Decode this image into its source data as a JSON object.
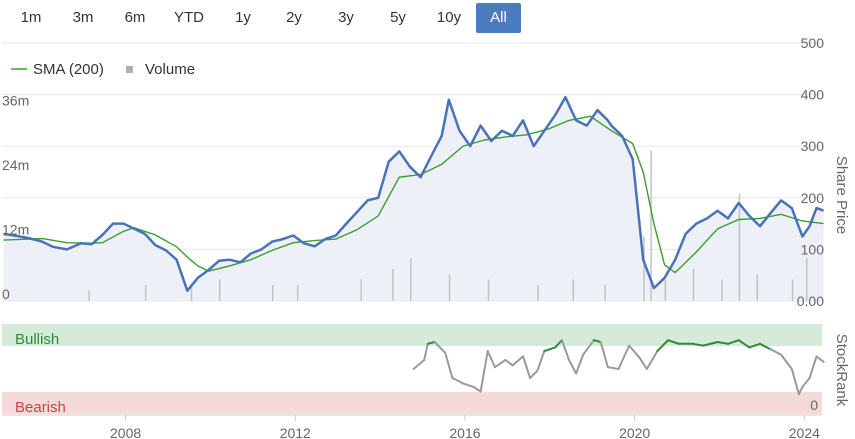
{
  "range_selector": {
    "buttons": [
      {
        "label": "1m",
        "active": false
      },
      {
        "label": "3m",
        "active": false
      },
      {
        "label": "6m",
        "active": false
      },
      {
        "label": "YTD",
        "active": false
      },
      {
        "label": "1y",
        "active": false
      },
      {
        "label": "2y",
        "active": false
      },
      {
        "label": "3y",
        "active": false
      },
      {
        "label": "5y",
        "active": false
      },
      {
        "label": "10y",
        "active": false
      },
      {
        "label": "All",
        "active": true
      }
    ]
  },
  "colors": {
    "price_line": "#4a72b8",
    "sma_line": "#3a9e2e",
    "volume_bar": "#c2c2c2",
    "area_fill": "#eef0f7",
    "bullish_band": "#d5ead8",
    "bullish_text": "#2e8b3a",
    "bearish_band": "#f6d9d9",
    "bearish_text": "#c74545",
    "stockrank_gray": "#9a9a9a",
    "stockrank_green": "#2e8b3a",
    "active_button": "#4a7bc0",
    "grid": "#e6e6e6"
  },
  "chart_data": {
    "type": "line",
    "x_axis": {
      "ticks": [
        "2008",
        "2012",
        "2016",
        "2020",
        "2024"
      ],
      "range": [
        "2005-02-01",
        "2024-06-01"
      ]
    },
    "price_axis": {
      "title": "Share Price",
      "ticks": [
        "500",
        "400",
        "300",
        "200",
        "100",
        "0.00"
      ],
      "ylim": [
        0,
        500
      ],
      "position": "right"
    },
    "volume_axis": {
      "ticks": [
        "36m",
        "24m",
        "12m",
        "0"
      ],
      "ylim": [
        0,
        48
      ],
      "position": "left"
    },
    "stockrank_axis": {
      "title": "StockRank",
      "ticks": [
        "0"
      ],
      "ylim": [
        0,
        100
      ],
      "bullish_label": "Bullish",
      "bearish_label": "Bearish",
      "bullish_threshold": 70,
      "bearish_threshold": 30
    },
    "legend": {
      "position": "top-left",
      "items": [
        {
          "label": "SMA (200)",
          "marker": "line"
        },
        {
          "label": "Volume",
          "marker": "square"
        }
      ]
    },
    "price_series": {
      "name": "Share Price",
      "points": [
        [
          "2005-02",
          130
        ],
        [
          "2005-05",
          127
        ],
        [
          "2005-09",
          122
        ],
        [
          "2006-01",
          115
        ],
        [
          "2006-04",
          105
        ],
        [
          "2006-08",
          100
        ],
        [
          "2006-12",
          112
        ],
        [
          "2007-03",
          110
        ],
        [
          "2007-06",
          128
        ],
        [
          "2007-09",
          150
        ],
        [
          "2007-12",
          150
        ],
        [
          "2008-03",
          140
        ],
        [
          "2008-06",
          130
        ],
        [
          "2008-09",
          108
        ],
        [
          "2008-12",
          98
        ],
        [
          "2009-03",
          80
        ],
        [
          "2009-06",
          20
        ],
        [
          "2009-09",
          45
        ],
        [
          "2009-12",
          60
        ],
        [
          "2010-03",
          78
        ],
        [
          "2010-06",
          80
        ],
        [
          "2010-09",
          75
        ],
        [
          "2010-12",
          92
        ],
        [
          "2011-03",
          100
        ],
        [
          "2011-06",
          115
        ],
        [
          "2011-09",
          120
        ],
        [
          "2011-12",
          127
        ],
        [
          "2012-03",
          112
        ],
        [
          "2012-06",
          106
        ],
        [
          "2012-09",
          120
        ],
        [
          "2012-12",
          127
        ],
        [
          "2013-03",
          150
        ],
        [
          "2013-06",
          172
        ],
        [
          "2013-09",
          195
        ],
        [
          "2013-12",
          200
        ],
        [
          "2014-03",
          270
        ],
        [
          "2014-06",
          290
        ],
        [
          "2014-09",
          260
        ],
        [
          "2014-12",
          240
        ],
        [
          "2015-03",
          280
        ],
        [
          "2015-06",
          320
        ],
        [
          "2015-08",
          390
        ],
        [
          "2015-11",
          330
        ],
        [
          "2016-02",
          300
        ],
        [
          "2016-05",
          340
        ],
        [
          "2016-08",
          310
        ],
        [
          "2016-11",
          330
        ],
        [
          "2017-02",
          320
        ],
        [
          "2017-05",
          350
        ],
        [
          "2017-08",
          300
        ],
        [
          "2017-11",
          330
        ],
        [
          "2018-02",
          360
        ],
        [
          "2018-05",
          395
        ],
        [
          "2018-08",
          350
        ],
        [
          "2018-11",
          340
        ],
        [
          "2019-02",
          370
        ],
        [
          "2019-05",
          350
        ],
        [
          "2019-06",
          340
        ],
        [
          "2019-09",
          320
        ],
        [
          "2019-12",
          275
        ],
        [
          "2020-03",
          80
        ],
        [
          "2020-06",
          25
        ],
        [
          "2020-09",
          45
        ],
        [
          "2020-12",
          80
        ],
        [
          "2021-03",
          130
        ],
        [
          "2021-06",
          150
        ],
        [
          "2021-09",
          160
        ],
        [
          "2021-12",
          175
        ],
        [
          "2022-03",
          160
        ],
        [
          "2022-06",
          190
        ],
        [
          "2022-09",
          165
        ],
        [
          "2022-12",
          145
        ],
        [
          "2023-03",
          170
        ],
        [
          "2023-06",
          195
        ],
        [
          "2023-09",
          180
        ],
        [
          "2023-12",
          125
        ],
        [
          "2024-02",
          145
        ],
        [
          "2024-04",
          180
        ],
        [
          "2024-06",
          175
        ]
      ]
    },
    "sma_series": {
      "name": "SMA (200)",
      "points": [
        [
          "2005-02",
          118
        ],
        [
          "2006-01",
          121
        ],
        [
          "2006-08",
          113
        ],
        [
          "2007-03",
          112
        ],
        [
          "2007-06",
          113
        ],
        [
          "2007-12",
          135
        ],
        [
          "2008-03",
          142
        ],
        [
          "2008-09",
          128
        ],
        [
          "2009-03",
          105
        ],
        [
          "2009-06",
          85
        ],
        [
          "2009-09",
          68
        ],
        [
          "2009-12",
          58
        ],
        [
          "2010-06",
          68
        ],
        [
          "2010-12",
          80
        ],
        [
          "2011-06",
          98
        ],
        [
          "2011-12",
          113
        ],
        [
          "2012-06",
          117
        ],
        [
          "2012-12",
          120
        ],
        [
          "2013-06",
          138
        ],
        [
          "2013-12",
          165
        ],
        [
          "2014-06",
          240
        ],
        [
          "2014-12",
          245
        ],
        [
          "2015-06",
          265
        ],
        [
          "2015-12",
          300
        ],
        [
          "2016-06",
          312
        ],
        [
          "2016-12",
          318
        ],
        [
          "2017-06",
          322
        ],
        [
          "2017-12",
          333
        ],
        [
          "2018-06",
          350
        ],
        [
          "2018-12",
          358
        ],
        [
          "2019-06",
          330
        ],
        [
          "2019-12",
          305
        ],
        [
          "2020-03",
          250
        ],
        [
          "2020-06",
          150
        ],
        [
          "2020-09",
          70
        ],
        [
          "2020-12",
          55
        ],
        [
          "2021-06",
          95
        ],
        [
          "2021-12",
          140
        ],
        [
          "2022-06",
          158
        ],
        [
          "2022-12",
          160
        ],
        [
          "2023-06",
          168
        ],
        [
          "2023-12",
          155
        ],
        [
          "2024-06",
          150
        ]
      ]
    },
    "volume_series": {
      "name": "Volume",
      "spikes": [
        [
          "2007-02",
          2
        ],
        [
          "2008-06",
          3
        ],
        [
          "2009-07",
          3
        ],
        [
          "2010-03",
          4
        ],
        [
          "2011-06",
          3
        ],
        [
          "2012-01",
          3
        ],
        [
          "2013-07",
          4
        ],
        [
          "2014-04",
          6
        ],
        [
          "2014-09",
          8
        ],
        [
          "2015-08",
          5
        ],
        [
          "2016-07",
          4
        ],
        [
          "2017-09",
          3
        ],
        [
          "2018-07",
          4
        ],
        [
          "2019-04",
          3
        ],
        [
          "2020-03",
          12
        ],
        [
          "2020-05",
          28
        ],
        [
          "2020-09",
          4
        ],
        [
          "2021-05",
          6
        ],
        [
          "2022-01",
          4
        ],
        [
          "2022-06",
          20
        ],
        [
          "2022-11",
          5
        ],
        [
          "2023-09",
          4
        ],
        [
          "2024-01",
          8
        ]
      ]
    },
    "stockrank_series": {
      "name": "StockRank",
      "points": [
        [
          "2014-10",
          50
        ],
        [
          "2015-01",
          60
        ],
        [
          "2015-02",
          78
        ],
        [
          "2015-04",
          80
        ],
        [
          "2015-07",
          68
        ],
        [
          "2015-09",
          40
        ],
        [
          "2015-12",
          34
        ],
        [
          "2016-03",
          30
        ],
        [
          "2016-05",
          25
        ],
        [
          "2016-07",
          70
        ],
        [
          "2016-09",
          52
        ],
        [
          "2016-12",
          60
        ],
        [
          "2017-02",
          54
        ],
        [
          "2017-05",
          64
        ],
        [
          "2017-07",
          40
        ],
        [
          "2017-09",
          48
        ],
        [
          "2017-11",
          70
        ],
        [
          "2018-02",
          74
        ],
        [
          "2018-04",
          82
        ],
        [
          "2018-06",
          60
        ],
        [
          "2018-08",
          45
        ],
        [
          "2018-10",
          66
        ],
        [
          "2019-01",
          82
        ],
        [
          "2019-03",
          80
        ],
        [
          "2019-05",
          52
        ],
        [
          "2019-08",
          50
        ],
        [
          "2019-11",
          76
        ],
        [
          "2020-02",
          62
        ],
        [
          "2020-04",
          50
        ],
        [
          "2020-07",
          70
        ],
        [
          "2020-10",
          82
        ],
        [
          "2021-01",
          78
        ],
        [
          "2021-05",
          78
        ],
        [
          "2021-08",
          76
        ],
        [
          "2021-12",
          80
        ],
        [
          "2022-03",
          78
        ],
        [
          "2022-06",
          82
        ],
        [
          "2022-09",
          74
        ],
        [
          "2022-12",
          78
        ],
        [
          "2023-03",
          72
        ],
        [
          "2023-06",
          66
        ],
        [
          "2023-09",
          50
        ],
        [
          "2023-11",
          22
        ],
        [
          "2023-12",
          30
        ],
        [
          "2024-02",
          40
        ],
        [
          "2024-04",
          64
        ],
        [
          "2024-06",
          58
        ]
      ]
    }
  }
}
